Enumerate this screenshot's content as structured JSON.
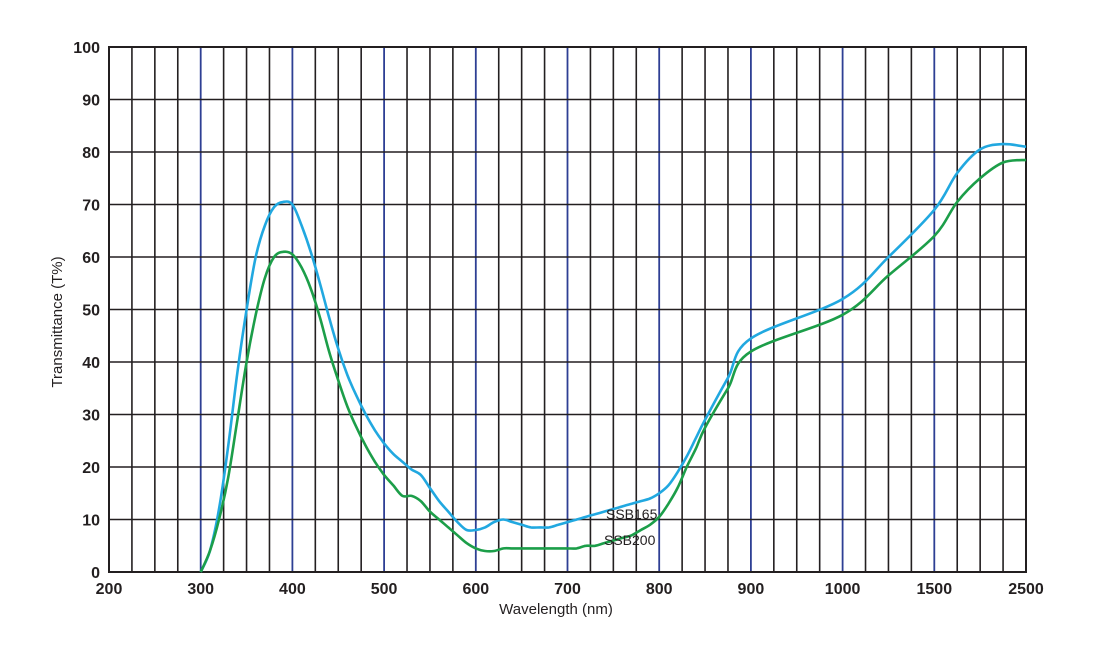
{
  "chart_data": {
    "type": "line",
    "xlabel": "Wavelength (nm)",
    "ylabel": "Transmittance (T%)",
    "ylim": [
      0,
      100
    ],
    "x_tick_labels": [
      "200",
      "300",
      "400",
      "500",
      "600",
      "700",
      "800",
      "900",
      "1000",
      "1500",
      "2500"
    ],
    "y_tick_labels": [
      "0",
      "10",
      "20",
      "30",
      "40",
      "50",
      "60",
      "70",
      "80",
      "90",
      "100"
    ],
    "grid": true,
    "colors": {
      "grid_minor": "#231f20",
      "grid_major": "#2e3f94"
    },
    "series": [
      {
        "name": "SSB165",
        "color": "#21a8e0",
        "points": [
          [
            300,
            0
          ],
          [
            310,
            4
          ],
          [
            320,
            12
          ],
          [
            330,
            24
          ],
          [
            340,
            38
          ],
          [
            350,
            50
          ],
          [
            360,
            60
          ],
          [
            370,
            66
          ],
          [
            380,
            69.5
          ],
          [
            390,
            70.5
          ],
          [
            400,
            70
          ],
          [
            410,
            66
          ],
          [
            420,
            61
          ],
          [
            430,
            55
          ],
          [
            440,
            48.5
          ],
          [
            450,
            42.5
          ],
          [
            460,
            37.5
          ],
          [
            470,
            33.5
          ],
          [
            480,
            30
          ],
          [
            490,
            27
          ],
          [
            500,
            24.5
          ],
          [
            510,
            22.5
          ],
          [
            520,
            21
          ],
          [
            530,
            19.5
          ],
          [
            540,
            18.5
          ],
          [
            550,
            16
          ],
          [
            560,
            13.5
          ],
          [
            570,
            11.5
          ],
          [
            580,
            9.5
          ],
          [
            590,
            8
          ],
          [
            600,
            8
          ],
          [
            610,
            8.5
          ],
          [
            620,
            9.5
          ],
          [
            630,
            10
          ],
          [
            640,
            9.5
          ],
          [
            650,
            9
          ],
          [
            660,
            8.5
          ],
          [
            670,
            8.5
          ],
          [
            680,
            8.5
          ],
          [
            690,
            9
          ],
          [
            700,
            9.5
          ],
          [
            710,
            10
          ],
          [
            720,
            10.5
          ],
          [
            730,
            11
          ],
          [
            740,
            11.5
          ],
          [
            750,
            12
          ],
          [
            760,
            12.5
          ],
          [
            770,
            13
          ],
          [
            780,
            13.5
          ],
          [
            790,
            14
          ],
          [
            800,
            15
          ],
          [
            810,
            16.5
          ],
          [
            820,
            19
          ],
          [
            830,
            22
          ],
          [
            840,
            25.5
          ],
          [
            850,
            29
          ],
          [
            875,
            37
          ],
          [
            900,
            44.5
          ],
          [
            1000,
            52
          ],
          [
            1250,
            60
          ],
          [
            1500,
            69
          ],
          [
            1750,
            76
          ],
          [
            2000,
            80.5
          ],
          [
            2250,
            81.5
          ],
          [
            2500,
            81
          ]
        ]
      },
      {
        "name": "SSB200",
        "color": "#1c9e49",
        "points": [
          [
            300,
            0
          ],
          [
            310,
            4
          ],
          [
            320,
            10
          ],
          [
            330,
            18
          ],
          [
            340,
            29
          ],
          [
            350,
            40
          ],
          [
            360,
            49
          ],
          [
            370,
            56
          ],
          [
            380,
            60
          ],
          [
            390,
            61
          ],
          [
            400,
            60.5
          ],
          [
            410,
            58
          ],
          [
            420,
            54
          ],
          [
            430,
            48.5
          ],
          [
            440,
            42
          ],
          [
            450,
            36.5
          ],
          [
            460,
            31.5
          ],
          [
            470,
            27.5
          ],
          [
            480,
            24
          ],
          [
            490,
            21
          ],
          [
            500,
            18.5
          ],
          [
            510,
            16.5
          ],
          [
            520,
            14.5
          ],
          [
            530,
            14.5
          ],
          [
            540,
            13.5
          ],
          [
            550,
            11.5
          ],
          [
            560,
            10
          ],
          [
            570,
            8.5
          ],
          [
            580,
            7
          ],
          [
            590,
            5.5
          ],
          [
            600,
            4.5
          ],
          [
            610,
            4
          ],
          [
            620,
            4
          ],
          [
            630,
            4.5
          ],
          [
            640,
            4.5
          ],
          [
            650,
            4.5
          ],
          [
            660,
            4.5
          ],
          [
            670,
            4.5
          ],
          [
            680,
            4.5
          ],
          [
            690,
            4.5
          ],
          [
            700,
            4.5
          ],
          [
            710,
            4.5
          ],
          [
            720,
            5
          ],
          [
            730,
            5
          ],
          [
            740,
            5.5
          ],
          [
            750,
            6
          ],
          [
            760,
            6.5
          ],
          [
            770,
            7
          ],
          [
            780,
            8
          ],
          [
            790,
            9
          ],
          [
            800,
            10.5
          ],
          [
            810,
            13
          ],
          [
            820,
            16
          ],
          [
            830,
            20
          ],
          [
            840,
            23.5
          ],
          [
            850,
            27.5
          ],
          [
            875,
            35
          ],
          [
            900,
            42
          ],
          [
            1000,
            49
          ],
          [
            1250,
            56.5
          ],
          [
            1500,
            64
          ],
          [
            1750,
            70.5
          ],
          [
            2000,
            75
          ],
          [
            2250,
            78
          ],
          [
            2500,
            78.5
          ]
        ]
      }
    ]
  }
}
